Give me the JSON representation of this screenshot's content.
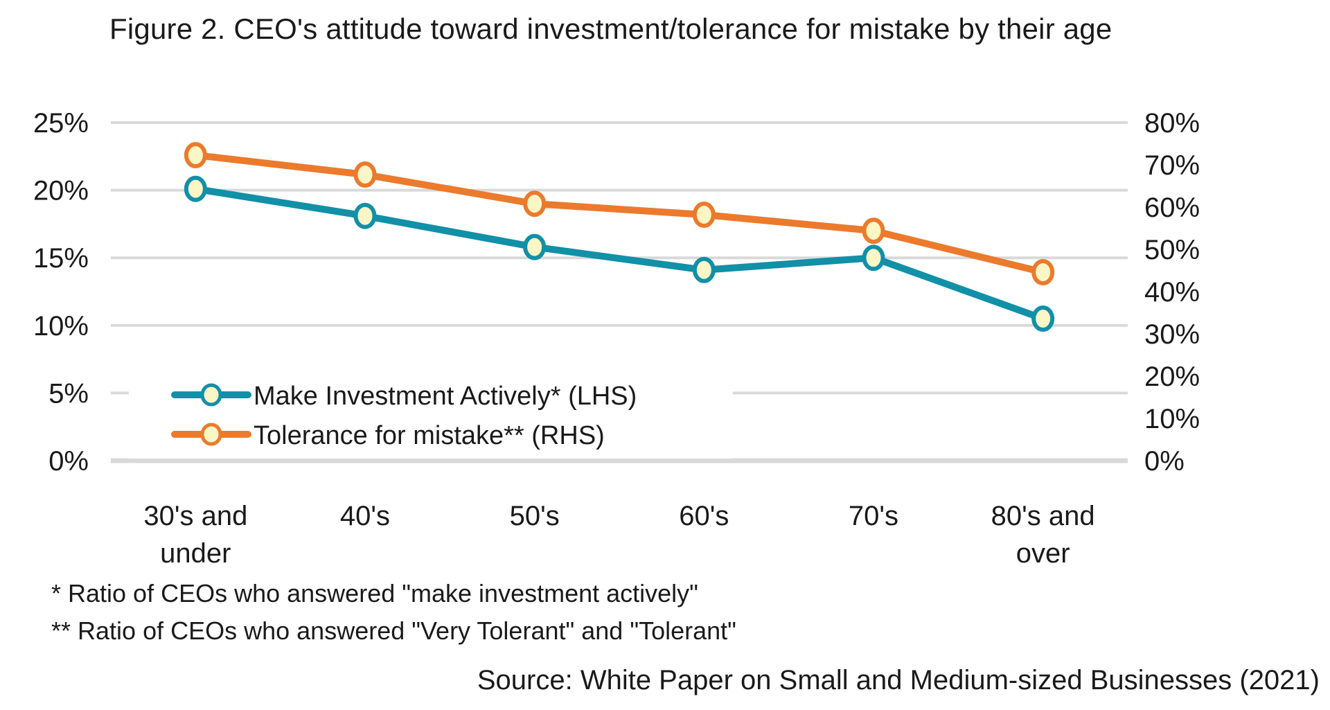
{
  "title": "Figure 2. CEO's attitude toward investment/tolerance for mistake by their age",
  "footnotes": [
    "* Ratio of CEOs who answered \"make investment actively\"",
    "** Ratio of CEOs who answered \"Very Tolerant\" and \"Tolerant\""
  ],
  "source": "Source: White Paper on Small and Medium-sized Businesses (2021)",
  "chart_data": {
    "type": "line",
    "title": "Figure 2. CEO's attitude toward investment/tolerance for mistake by their age",
    "categories": [
      "30's and under",
      "40's",
      "50's",
      "60's",
      "70's",
      "80's and over"
    ],
    "series": [
      {
        "name": "Make Investment Actively* (LHS)",
        "axis": "left",
        "color": "#1190A8",
        "values": [
          20.1,
          18.1,
          15.8,
          14.1,
          15.0,
          10.5
        ]
      },
      {
        "name": "Tolerance for mistake** (RHS)",
        "axis": "right",
        "color": "#EC7A2D",
        "values": [
          72.3,
          67.7,
          60.8,
          58.2,
          54.4,
          44.6
        ]
      }
    ],
    "left_axis": {
      "min": 0,
      "max": 25,
      "step": 5,
      "format": "percent",
      "tick_labels": [
        "0%",
        "5%",
        "10%",
        "15%",
        "20%",
        "25%"
      ]
    },
    "right_axis": {
      "min": 0,
      "max": 80,
      "step": 10,
      "format": "percent",
      "tick_labels": [
        "0%",
        "10%",
        "20%",
        "30%",
        "40%",
        "50%",
        "60%",
        "70%",
        "80%"
      ]
    },
    "grid": true,
    "gridline_color": "#D9D9D9",
    "marker_fill": "#FAF6C6",
    "text_color": "#1A1A1A",
    "legend_position": "inside-bottom-left"
  }
}
